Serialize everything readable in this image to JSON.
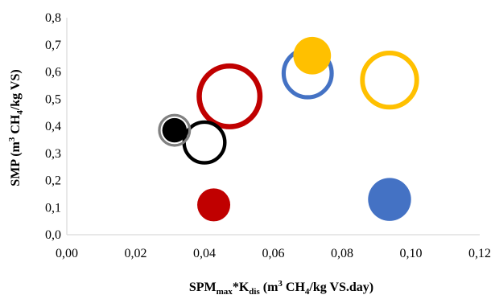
{
  "chart_data": {
    "type": "scatter",
    "subtype": "bubble",
    "title": "",
    "xlabel": {
      "parts": [
        {
          "t": "SPM"
        },
        {
          "t": "max",
          "sub": true
        },
        {
          "t": "*K"
        },
        {
          "t": "dis",
          "sub": true
        },
        {
          "t": " (m"
        },
        {
          "t": "3",
          "sup": true
        },
        {
          "t": " CH"
        },
        {
          "t": "4",
          "sub": true
        },
        {
          "t": "/kg VS.day)"
        }
      ]
    },
    "ylabel": {
      "parts": [
        {
          "t": "SMP (m"
        },
        {
          "t": "3",
          "sup": true
        },
        {
          "t": " CH"
        },
        {
          "t": "4",
          "sub": true
        },
        {
          "t": "/kg VS)"
        }
      ]
    },
    "xlim": [
      0,
      0.12
    ],
    "ylim": [
      0,
      0.8
    ],
    "x_ticks": [
      "0,00",
      "0,02",
      "0,04",
      "0,06",
      "0,08",
      "0,10",
      "0,12"
    ],
    "y_ticks": [
      "0,0",
      "0,1",
      "0,2",
      "0,3",
      "0,4",
      "0,5",
      "0,6",
      "0,7",
      "0,8"
    ],
    "grid": false,
    "legend": "none",
    "points": [
      {
        "x": 0.0473,
        "y": 0.51,
        "size": 4.0,
        "style": "ring",
        "color": "#c00000"
      },
      {
        "x": 0.0938,
        "y": 0.57,
        "size": 3.2,
        "style": "ring",
        "color": "#ffc000"
      },
      {
        "x": 0.07,
        "y": 0.595,
        "size": 2.5,
        "style": "ring",
        "color": "#4472c4"
      },
      {
        "x": 0.04,
        "y": 0.34,
        "size": 1.8,
        "style": "ring",
        "color": "#000000"
      },
      {
        "x": 0.0313,
        "y": 0.385,
        "size": 1.0,
        "style": "ring",
        "color": "#808080"
      },
      {
        "x": 0.0313,
        "y": 0.385,
        "size": 0.55,
        "style": "filled",
        "color": "#000000"
      },
      {
        "x": 0.0713,
        "y": 0.66,
        "size": 1.3,
        "style": "filled",
        "color": "#ffc000"
      },
      {
        "x": 0.0938,
        "y": 0.13,
        "size": 1.7,
        "style": "filled",
        "color": "#4472c4"
      },
      {
        "x": 0.0427,
        "y": 0.11,
        "size": 1.0,
        "style": "filled",
        "color": "#c00000"
      }
    ]
  }
}
